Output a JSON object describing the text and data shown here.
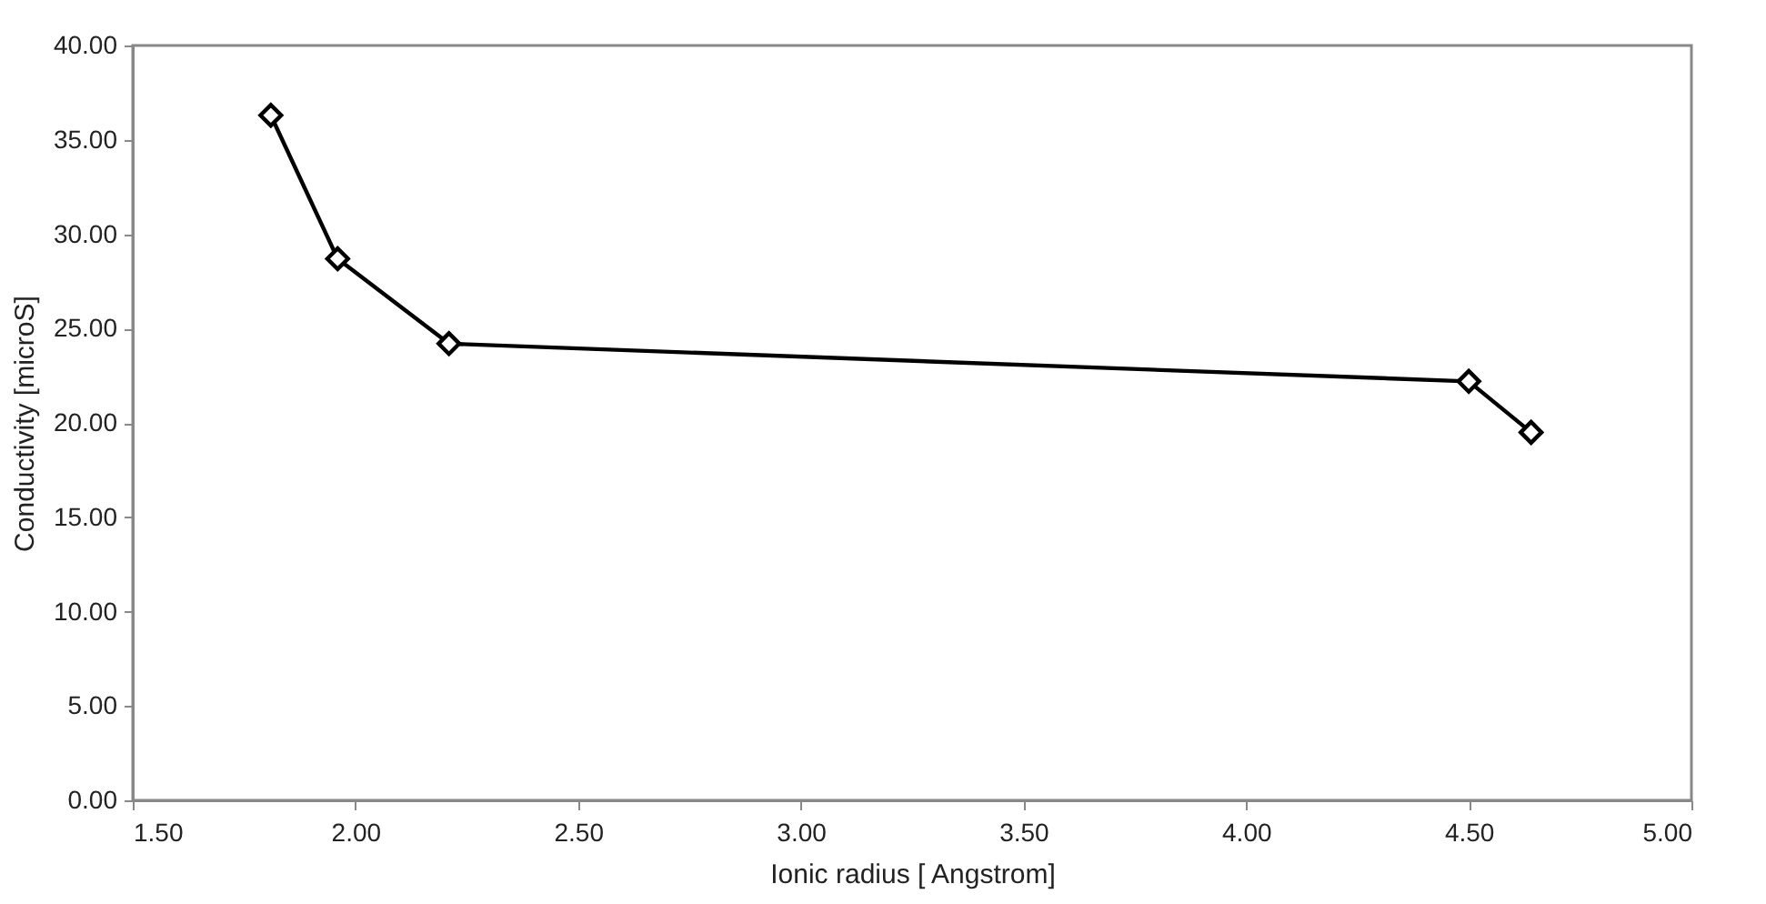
{
  "chart_data": {
    "type": "line",
    "xlabel": "Ionic radius [ Angstrom]",
    "ylabel": "Conductivity [microS]",
    "x": [
      1.81,
      1.96,
      2.21,
      4.5,
      4.64
    ],
    "series": [
      {
        "color": "#000000",
        "values": [
          36.3,
          28.7,
          24.2,
          22.2,
          19.5
        ]
      }
    ],
    "xlim": [
      1.5,
      5
    ],
    "xticks": [
      {
        "value": 1.5,
        "label": "1.50"
      },
      {
        "value": 2,
        "label": "2.00"
      },
      {
        "value": 2.5,
        "label": "2.50"
      },
      {
        "value": 3,
        "label": "3.00"
      },
      {
        "value": 3.5,
        "label": "3.50"
      },
      {
        "value": 4,
        "label": "4.00"
      },
      {
        "value": 4.5,
        "label": "4.50"
      },
      {
        "value": 5,
        "label": "5.00"
      }
    ],
    "ylim": [
      0,
      40
    ],
    "yticks": [
      {
        "value": 0,
        "label": "0.00"
      },
      {
        "value": 5,
        "label": "5.00"
      },
      {
        "value": 10,
        "label": "10.00"
      },
      {
        "value": 15,
        "label": "15.00"
      },
      {
        "value": 20,
        "label": "20.00"
      },
      {
        "value": 25,
        "label": "25.00"
      },
      {
        "value": 30,
        "label": "30.00"
      },
      {
        "value": 35,
        "label": "35.00"
      },
      {
        "value": 40,
        "label": "40.00"
      }
    ],
    "grid": false,
    "legend": false,
    "marker": "diamond",
    "line_style": "solid"
  }
}
